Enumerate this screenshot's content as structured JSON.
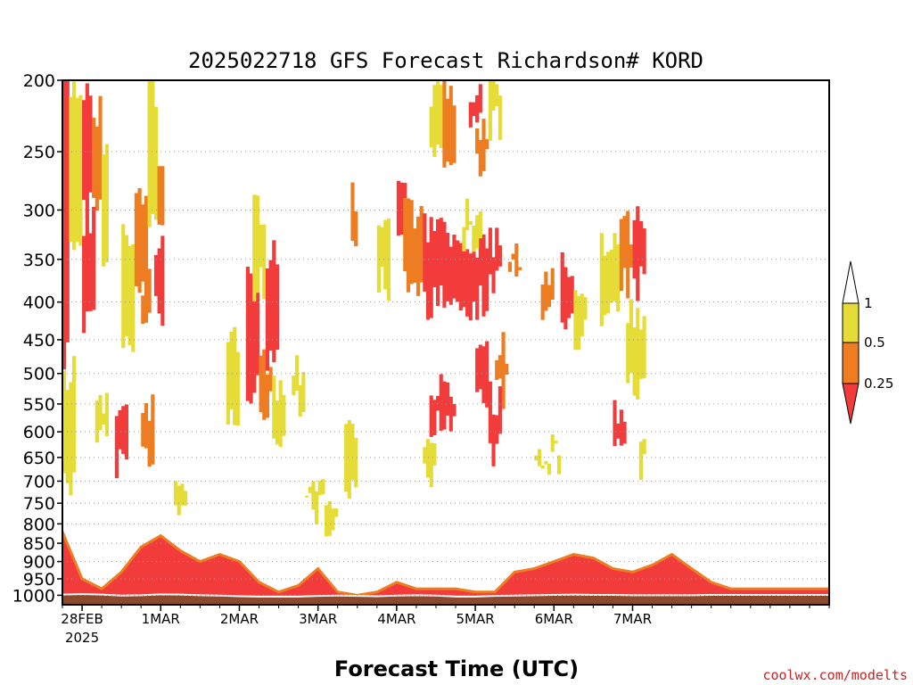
{
  "chart_data": {
    "type": "heatmap",
    "title": "2025022718 GFS Forecast Richardson# KORD",
    "xlabel": "Forecast Time (UTC)",
    "ylabel": "",
    "credit": "coolwx.com/modelts",
    "x_axis": {
      "unit": "hours from 2025022718",
      "range": [
        0,
        234
      ],
      "ticks": [
        {
          "hour": 6,
          "label": "28FEB",
          "sublabel": "2025"
        },
        {
          "hour": 30,
          "label": "1MAR"
        },
        {
          "hour": 54,
          "label": "2MAR"
        },
        {
          "hour": 78,
          "label": "3MAR"
        },
        {
          "hour": 102,
          "label": "4MAR"
        },
        {
          "hour": 126,
          "label": "5MAR"
        },
        {
          "hour": 150,
          "label": "6MAR"
        },
        {
          "hour": 174,
          "label": "7MAR"
        }
      ]
    },
    "y_axis": {
      "unit": "hPa",
      "scale": "log",
      "reversed": true,
      "range": [
        1030,
        200
      ],
      "ticks": [
        200,
        250,
        300,
        350,
        400,
        450,
        500,
        550,
        600,
        650,
        700,
        750,
        800,
        850,
        900,
        950,
        1000
      ],
      "tick_labels": [
        "200",
        "250",
        "300",
        "350",
        "400",
        "450",
        "500",
        "550",
        "600",
        "650",
        "700",
        "750",
        "800",
        "850",
        "900",
        "950",
        "1000"
      ],
      "gridlines": "dotted"
    },
    "legend": {
      "position": "right",
      "labels": [
        "1",
        "0.5",
        "0.25"
      ],
      "bands": [
        {
          "range": "< 0.25",
          "color": "#f23c3c"
        },
        {
          "range": "0.25 – 0.5",
          "color": "#ee7d22"
        },
        {
          "range": "0.5 – 1",
          "color": "#e6dc37"
        },
        {
          "range": "> 1",
          "color": "#ffffff"
        }
      ]
    },
    "colors": {
      "red": "#f23c3c",
      "orange": "#ee7d22",
      "yellow": "#e6dc37",
      "ground": "#8b4a2b",
      "surface_line": "#ffffff"
    },
    "surface_pressure": {
      "hours": [
        0,
        6,
        12,
        18,
        24,
        30,
        36,
        42,
        48,
        54,
        60,
        66,
        72,
        78,
        84,
        90,
        96,
        102,
        108,
        114,
        120,
        126,
        132,
        138,
        144,
        150,
        156,
        162,
        168,
        174,
        180,
        186,
        192,
        198,
        204,
        210,
        216,
        222,
        228,
        234
      ],
      "values": [
        998,
        996,
        998,
        1001,
        1000,
        997,
        998,
        1000,
        1001,
        1003,
        1004,
        1004,
        1004,
        1002,
        1001,
        1002,
        1003,
        1001,
        1000,
        1001,
        1004,
        1004,
        1002,
        1001,
        1000,
        999,
        998,
        999,
        999,
        1000,
        1000,
        1000,
        1000,
        999,
        999,
        999,
        999,
        999,
        999,
        999
      ]
    },
    "boundary_layer_top": {
      "hours": [
        0,
        6,
        12,
        18,
        24,
        30,
        36,
        42,
        48,
        54,
        60,
        66,
        72,
        78,
        84,
        90,
        96,
        102,
        108,
        114,
        120,
        126,
        132,
        138,
        144,
        150,
        156,
        162,
        168,
        174,
        180,
        186,
        192,
        198,
        204,
        210,
        216,
        222,
        228,
        234
      ],
      "values": [
        820,
        950,
        980,
        930,
        860,
        830,
        870,
        900,
        880,
        900,
        960,
        990,
        970,
        920,
        990,
        1000,
        990,
        960,
        980,
        980,
        980,
        990,
        990,
        930,
        920,
        900,
        880,
        890,
        920,
        930,
        910,
        880,
        920,
        960,
        980,
        980,
        980,
        980,
        980,
        980
      ]
    },
    "blobs": [
      {
        "h0": 0,
        "h1": 2,
        "p0": 205,
        "p1": 470,
        "value": "red"
      },
      {
        "h0": 2,
        "h1": 6,
        "p0": 205,
        "p1": 330,
        "value": "yellow"
      },
      {
        "h0": 6,
        "h1": 9,
        "p0": 205,
        "p1": 300,
        "value": "red"
      },
      {
        "h0": 9,
        "h1": 12,
        "p0": 220,
        "p1": 290,
        "value": "orange"
      },
      {
        "h0": 12,
        "h1": 14,
        "p0": 240,
        "p1": 350,
        "value": "yellow"
      },
      {
        "h0": 6,
        "h1": 10,
        "p0": 310,
        "p1": 420,
        "value": "red"
      },
      {
        "h0": 0,
        "h1": 4,
        "p0": 500,
        "p1": 700,
        "value": "yellow"
      },
      {
        "h0": 10,
        "h1": 14,
        "p0": 540,
        "p1": 620,
        "value": "yellow"
      },
      {
        "h0": 16,
        "h1": 20,
        "p0": 560,
        "p1": 660,
        "value": "red"
      },
      {
        "h0": 18,
        "h1": 22,
        "p0": 320,
        "p1": 460,
        "value": "yellow"
      },
      {
        "h0": 22,
        "h1": 26,
        "p0": 280,
        "p1": 380,
        "value": "orange"
      },
      {
        "h0": 24,
        "h1": 28,
        "p0": 560,
        "p1": 640,
        "value": "orange"
      },
      {
        "h0": 26,
        "h1": 29,
        "p0": 205,
        "p1": 320,
        "value": "yellow"
      },
      {
        "h0": 28,
        "h1": 31,
        "p0": 340,
        "p1": 410,
        "value": "red"
      },
      {
        "h0": 29,
        "h1": 31,
        "p0": 250,
        "p1": 300,
        "value": "orange"
      },
      {
        "h0": 24,
        "h1": 27,
        "p0": 380,
        "p1": 440,
        "value": "orange"
      },
      {
        "h0": 34,
        "h1": 38,
        "p0": 690,
        "p1": 780,
        "value": "yellow"
      },
      {
        "h0": 50,
        "h1": 54,
        "p0": 460,
        "p1": 560,
        "value": "yellow"
      },
      {
        "h0": 56,
        "h1": 60,
        "p0": 380,
        "p1": 520,
        "value": "red"
      },
      {
        "h0": 60,
        "h1": 64,
        "p0": 490,
        "p1": 560,
        "value": "orange"
      },
      {
        "h0": 58,
        "h1": 62,
        "p0": 300,
        "p1": 380,
        "value": "yellow"
      },
      {
        "h0": 62,
        "h1": 66,
        "p0": 340,
        "p1": 470,
        "value": "red"
      },
      {
        "h0": 64,
        "h1": 68,
        "p0": 520,
        "p1": 620,
        "value": "yellow"
      },
      {
        "h0": 70,
        "h1": 74,
        "p0": 490,
        "p1": 540,
        "value": "yellow"
      },
      {
        "h0": 74,
        "h1": 80,
        "p0": 700,
        "p1": 760,
        "value": "yellow"
      },
      {
        "h0": 80,
        "h1": 84,
        "p0": 740,
        "p1": 830,
        "value": "yellow"
      },
      {
        "h0": 86,
        "h1": 90,
        "p0": 600,
        "p1": 720,
        "value": "yellow"
      },
      {
        "h0": 88,
        "h1": 90,
        "p0": 290,
        "p1": 320,
        "value": "orange"
      },
      {
        "h0": 96,
        "h1": 100,
        "p0": 300,
        "p1": 380,
        "value": "yellow"
      },
      {
        "h0": 102,
        "h1": 106,
        "p0": 290,
        "p1": 340,
        "value": "red"
      },
      {
        "h0": 104,
        "h1": 110,
        "p0": 300,
        "p1": 380,
        "value": "orange"
      },
      {
        "h0": 110,
        "h1": 118,
        "p0": 320,
        "p1": 400,
        "value": "red"
      },
      {
        "h0": 112,
        "h1": 116,
        "p0": 205,
        "p1": 260,
        "value": "yellow"
      },
      {
        "h0": 116,
        "h1": 120,
        "p0": 205,
        "p1": 250,
        "value": "orange"
      },
      {
        "h0": 118,
        "h1": 130,
        "p0": 330,
        "p1": 400,
        "value": "red"
      },
      {
        "h0": 122,
        "h1": 128,
        "p0": 300,
        "p1": 330,
        "value": "yellow"
      },
      {
        "h0": 124,
        "h1": 128,
        "p0": 205,
        "p1": 230,
        "value": "red"
      },
      {
        "h0": 126,
        "h1": 130,
        "p0": 230,
        "p1": 260,
        "value": "orange"
      },
      {
        "h0": 130,
        "h1": 134,
        "p0": 205,
        "p1": 230,
        "value": "yellow"
      },
      {
        "h0": 130,
        "h1": 134,
        "p0": 330,
        "p1": 380,
        "value": "red"
      },
      {
        "h0": 136,
        "h1": 140,
        "p0": 340,
        "p1": 360,
        "value": "orange"
      },
      {
        "h0": 112,
        "h1": 120,
        "p0": 530,
        "p1": 590,
        "value": "red"
      },
      {
        "h0": 110,
        "h1": 114,
        "p0": 600,
        "p1": 700,
        "value": "yellow"
      },
      {
        "h0": 126,
        "h1": 130,
        "p0": 440,
        "p1": 530,
        "value": "red"
      },
      {
        "h0": 132,
        "h1": 136,
        "p0": 460,
        "p1": 530,
        "value": "orange"
      },
      {
        "h0": 130,
        "h1": 134,
        "p0": 540,
        "p1": 640,
        "value": "red"
      },
      {
        "h0": 146,
        "h1": 150,
        "p0": 380,
        "p1": 420,
        "value": "orange"
      },
      {
        "h0": 152,
        "h1": 156,
        "p0": 360,
        "p1": 420,
        "value": "red"
      },
      {
        "h0": 156,
        "h1": 160,
        "p0": 380,
        "p1": 440,
        "value": "yellow"
      },
      {
        "h0": 164,
        "h1": 170,
        "p0": 340,
        "p1": 420,
        "value": "yellow"
      },
      {
        "h0": 170,
        "h1": 174,
        "p0": 320,
        "p1": 380,
        "value": "orange"
      },
      {
        "h0": 174,
        "h1": 178,
        "p0": 300,
        "p1": 380,
        "value": "red"
      },
      {
        "h0": 172,
        "h1": 178,
        "p0": 420,
        "p1": 520,
        "value": "yellow"
      },
      {
        "h0": 168,
        "h1": 172,
        "p0": 560,
        "p1": 600,
        "value": "red"
      },
      {
        "h0": 176,
        "h1": 178,
        "p0": 600,
        "p1": 660,
        "value": "yellow"
      },
      {
        "h0": 144,
        "h1": 152,
        "p0": 640,
        "p1": 660,
        "value": "yellow"
      }
    ]
  }
}
